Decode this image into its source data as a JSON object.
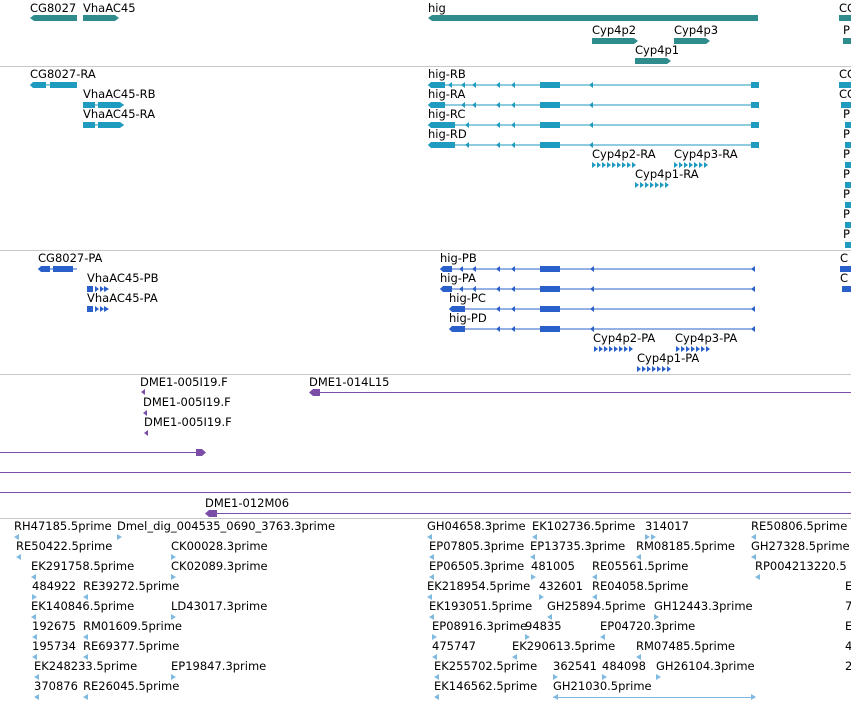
{
  "colors": {
    "gene": "#2f8c8c",
    "transcript": "#1e9bbf",
    "protein": "#2a60c9",
    "clone": "#7a4da6",
    "est": "#7fb9df",
    "divider": "#c8c8c8"
  },
  "tracks": {
    "genes": [
      {
        "label": "CG8027",
        "bars": [
          [
            30,
            77
          ]
        ],
        "dir": "-"
      },
      {
        "label": "VhaAC45",
        "bars": [
          [
            83,
            119
          ]
        ],
        "dir": "+"
      },
      {
        "label": "hig",
        "bars": [
          [
            428,
            758
          ]
        ],
        "dir": "-"
      },
      {
        "label": "Cyp4p2",
        "bars": [
          [
            592,
            638
          ]
        ],
        "dir": "+"
      },
      {
        "label": "Cyp4p3",
        "bars": [
          [
            674,
            710
          ]
        ],
        "dir": "+"
      },
      {
        "label": "Cyp4p1",
        "bars": [
          [
            635,
            671
          ]
        ],
        "dir": "+"
      },
      {
        "label": "CG",
        "bars": [
          [
            839,
            851
          ]
        ],
        "dir": "+"
      },
      {
        "label": "P",
        "bars": [
          [
            843,
            851
          ]
        ],
        "dir": "+"
      }
    ],
    "transcripts": [
      {
        "label": "CG8027-RA"
      },
      {
        "label": "VhaAC45-RB"
      },
      {
        "label": "VhaAC45-RA"
      },
      {
        "label": "hig-RB"
      },
      {
        "label": "hig-RA"
      },
      {
        "label": "hig-RC"
      },
      {
        "label": "hig-RD"
      },
      {
        "label": "Cyp4p2-RA"
      },
      {
        "label": "Cyp4p3-RA"
      },
      {
        "label": "Cyp4p1-RA"
      },
      {
        "label": "CG"
      },
      {
        "label": "CG"
      },
      {
        "label": "P"
      },
      {
        "label": "P"
      },
      {
        "label": "P"
      },
      {
        "label": "P"
      },
      {
        "label": "P"
      },
      {
        "label": "P"
      },
      {
        "label": "P"
      }
    ],
    "proteins": [
      {
        "label": "CG8027-PA"
      },
      {
        "label": "VhaAC45-PB"
      },
      {
        "label": "VhaAC45-PA"
      },
      {
        "label": "hig-PB"
      },
      {
        "label": "hig-PA"
      },
      {
        "label": "hig-PC"
      },
      {
        "label": "hig-PD"
      },
      {
        "label": "Cyp4p2-PA"
      },
      {
        "label": "Cyp4p3-PA"
      },
      {
        "label": "Cyp4p1-PA"
      },
      {
        "label": "C"
      },
      {
        "label": "C"
      }
    ],
    "clones": [
      {
        "label": "DME1-005I19.F"
      },
      {
        "label": "DME1-014L15"
      },
      {
        "label": "DME1-005I19.F"
      },
      {
        "label": "DME1-005I19.F"
      },
      {
        "label": "DME1-012M06"
      }
    ],
    "ests": [
      "RH47185.5prime",
      "Dmel_dig_004535_0690_3763.3prime",
      "GH04658.3prime",
      "EK102736.5prime",
      "314017",
      "RE50806.5prime",
      "RE50422.5prime",
      "CK00028.3prime",
      "EP07805.3prime",
      "EP13735.3prime",
      "RM08185.5prime",
      "GH27328.5prime",
      "EK291758.5prime",
      "CK02089.3prime",
      "EP06505.3prime",
      "481005",
      "RE05561.5prime",
      "RP004213220.5",
      "484922",
      "RE39272.5prime",
      "EK218954.5prime",
      "432601",
      "RE04058.5prime",
      "EK140846.5prime",
      "LD43017.3prime",
      "EK193051.5prime",
      "GH25894.5prime",
      "GH12443.3prime",
      "192675",
      "RM01609.5prime",
      "EP08916.3prime",
      "94835",
      "EP04720.3prime",
      "195734",
      "RE69377.5prime",
      "475747",
      "EK290613.5prime",
      "RM07485.5prime",
      "EK248233.5prime",
      "EP19847.3prime",
      "EK255702.5prime",
      "362541",
      "484098",
      "GH26104.3prime",
      "370876",
      "RE26045.5prime",
      "EK146562.5prime",
      "GH21030.5prime",
      "E",
      "7",
      "E",
      "4",
      "2"
    ]
  }
}
